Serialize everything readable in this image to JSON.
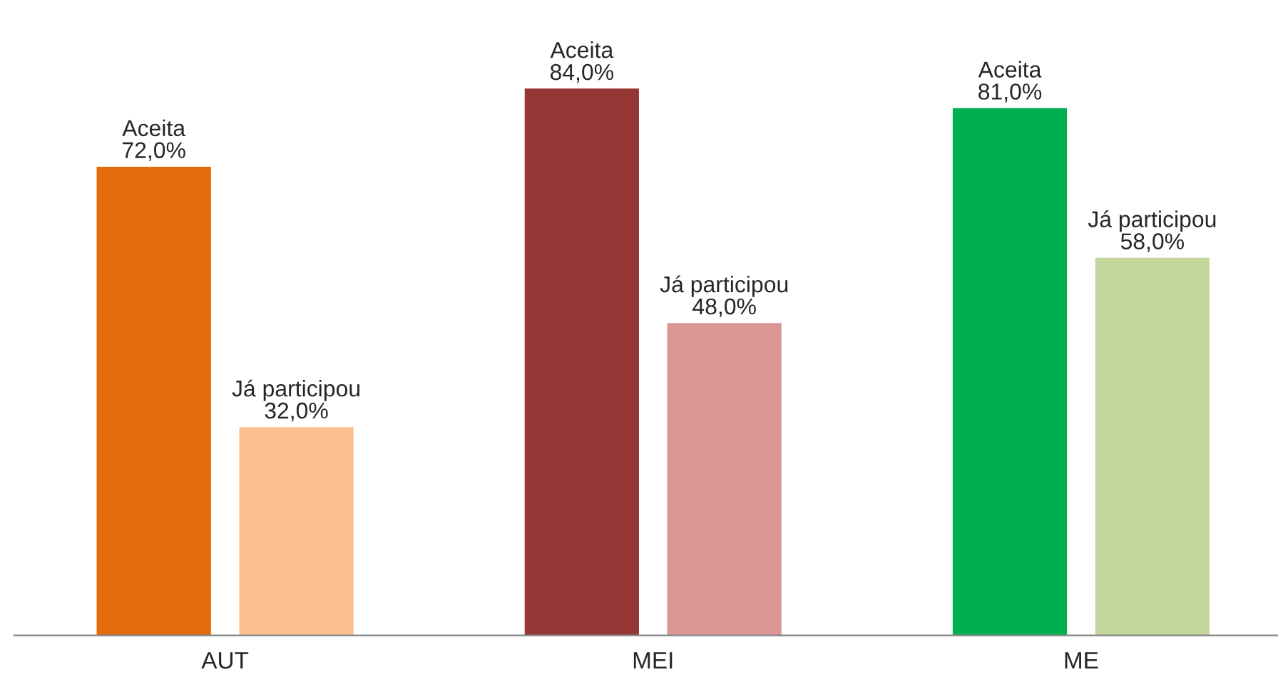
{
  "chart_data": {
    "type": "bar",
    "categories": [
      "AUT",
      "MEI",
      "ME"
    ],
    "series": [
      {
        "name": "Aceita",
        "colors": [
          "#e36c0a",
          "#953735",
          "#00b050"
        ],
        "values": [
          72,
          84,
          81
        ],
        "value_labels": [
          "72,0%",
          "84,0%",
          "81,0%"
        ]
      },
      {
        "name": "Já participou",
        "colors": [
          "#fac090",
          "#d99694",
          "#c3d69b"
        ],
        "values": [
          32,
          48,
          58
        ],
        "value_labels": [
          "32,0%",
          "48,0%",
          "58,0%"
        ]
      }
    ],
    "grid": false,
    "legend": false
  }
}
